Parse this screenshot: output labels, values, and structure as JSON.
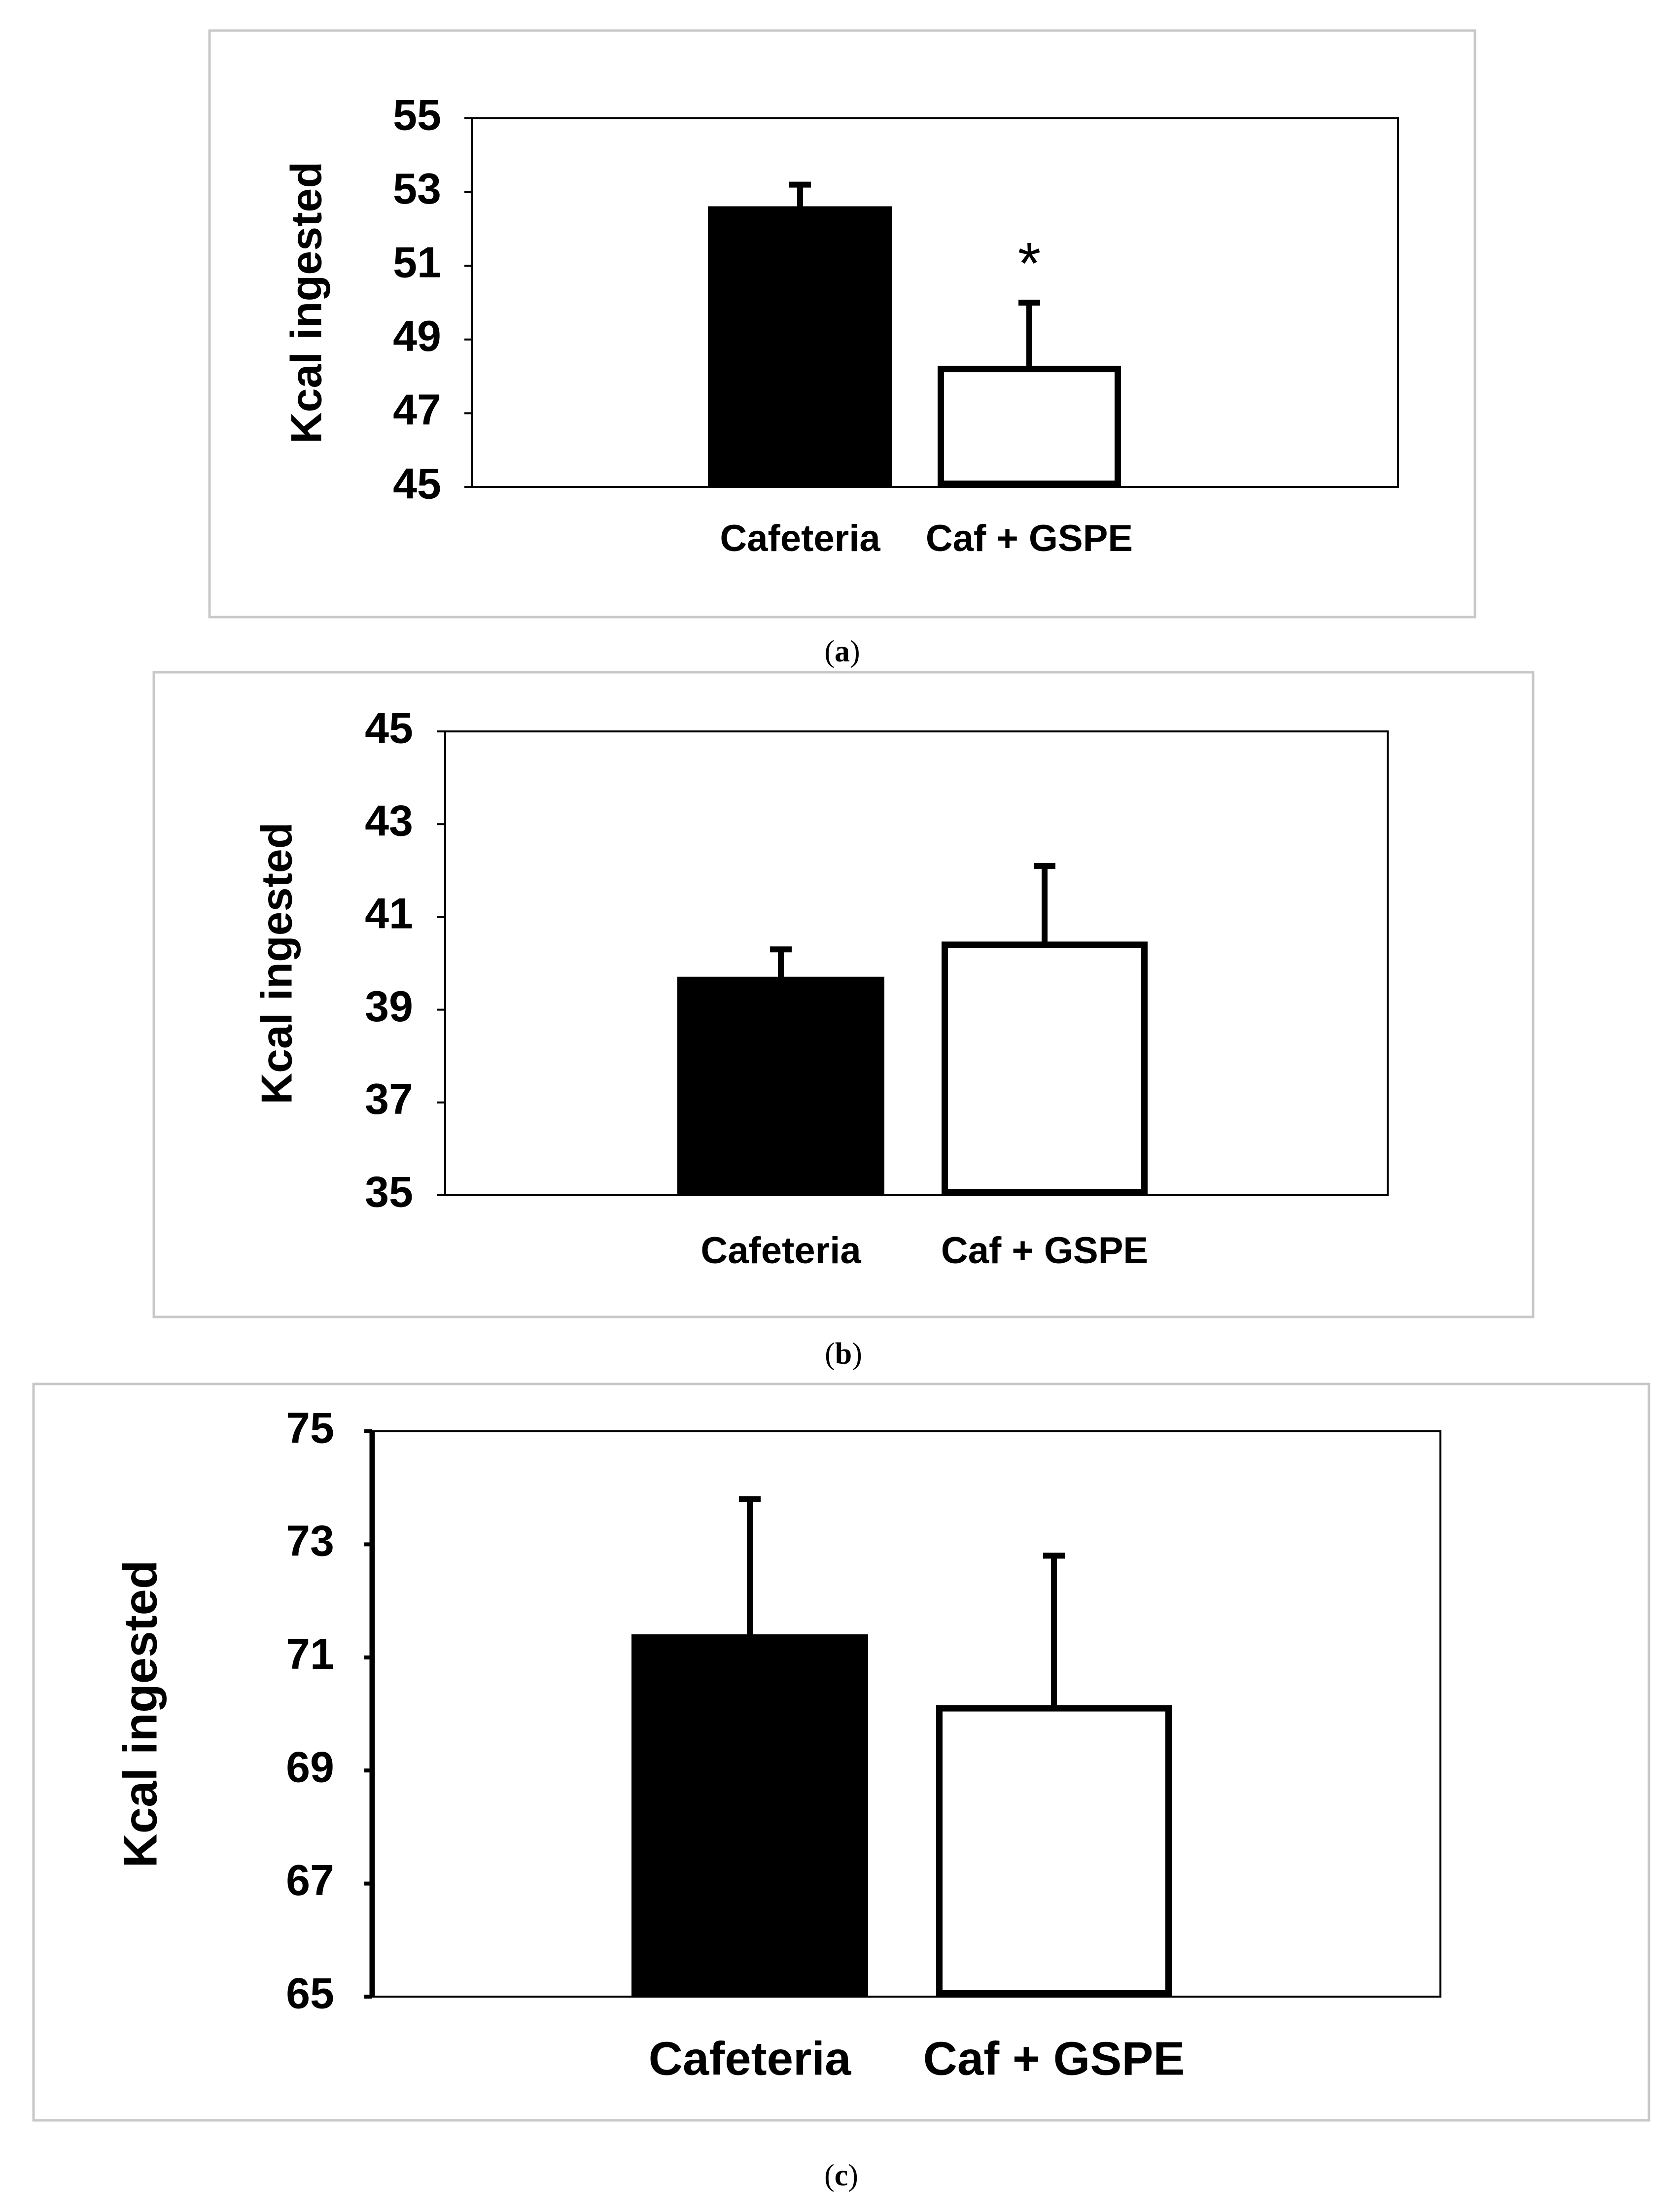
{
  "chart_data": [
    {
      "type": "bar",
      "panel_label": "a",
      "ylabel": "Kcal ingested",
      "ylim": [
        45,
        55
      ],
      "yticks": [
        45,
        47,
        49,
        51,
        53,
        55
      ],
      "categories": [
        "Cafeteria",
        "Caf + GSPE"
      ],
      "values": [
        52.6,
        48.2
      ],
      "errors": [
        0.6,
        1.8
      ],
      "fills": [
        "#000000",
        "#ffffff"
      ],
      "significance": [
        "",
        "*"
      ]
    },
    {
      "type": "bar",
      "panel_label": "b",
      "ylabel": "Kcal ingested",
      "ylim": [
        35,
        45
      ],
      "yticks": [
        35,
        37,
        39,
        41,
        43,
        45
      ],
      "categories": [
        "Cafeteria",
        "Caf + GSPE"
      ],
      "values": [
        39.7,
        40.4
      ],
      "errors": [
        0.6,
        1.7
      ],
      "fills": [
        "#000000",
        "#ffffff"
      ],
      "significance": [
        "",
        ""
      ]
    },
    {
      "type": "bar",
      "panel_label": "c",
      "ylabel": "Kcal ingested",
      "ylim": [
        65,
        75
      ],
      "yticks": [
        65,
        67,
        69,
        71,
        73,
        75
      ],
      "categories": [
        "Cafeteria",
        "Caf + GSPE"
      ],
      "values": [
        71.4,
        70.1
      ],
      "errors": [
        2.4,
        2.7
      ],
      "fills": [
        "#000000",
        "#ffffff"
      ],
      "significance": [
        "",
        ""
      ]
    }
  ]
}
